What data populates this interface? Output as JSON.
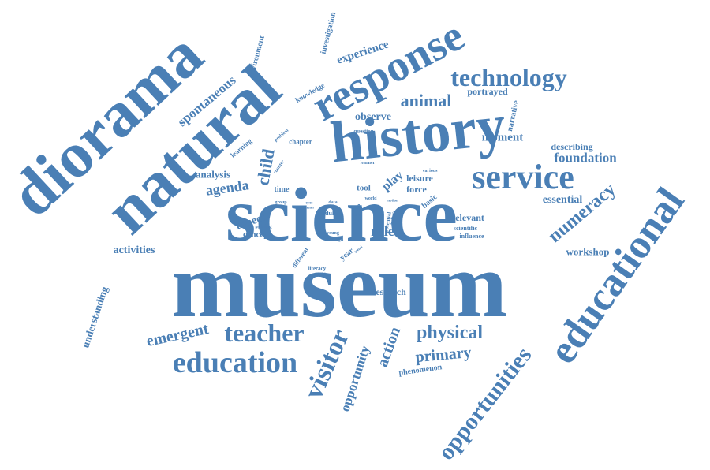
{
  "color": "#4a7fb5",
  "words": [
    "museum",
    "science",
    "history",
    "natural",
    "diorama",
    "response",
    "educational",
    "service",
    "technology",
    "education",
    "teacher",
    "visitor",
    "opportunities",
    "physical",
    "numeracy",
    "child",
    "animal",
    "experience",
    "spontaneous",
    "emergent",
    "primary",
    "action",
    "opportunity",
    "foundation",
    "agenda",
    "observe",
    "moment",
    "role",
    "essential",
    "describing",
    "understanding",
    "activities",
    "aspect",
    "analysis",
    "workshop",
    "research",
    "play",
    "force",
    "leisure",
    "relevant",
    "portrayed",
    "narrative",
    "chapter",
    "environment",
    "investigation",
    "knowledge",
    "concept",
    "time",
    "learning",
    "phenomenon",
    "tool",
    "basic",
    "scientific",
    "influence",
    "future",
    "year",
    "different",
    "young",
    "design",
    "adult",
    "potential",
    "solving",
    "literacy",
    "exhibit",
    "question",
    "problem",
    "group",
    "counter",
    "learner",
    "various",
    "data",
    "world",
    "holistic",
    "eyes",
    "mean",
    "trend",
    "notion"
  ]
}
